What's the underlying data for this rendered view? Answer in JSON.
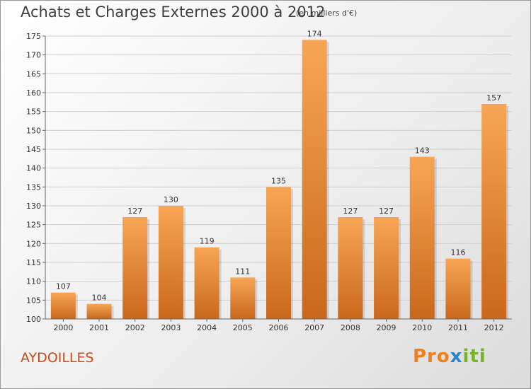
{
  "header": {
    "title": "Achats et Charges Externes 2000 à 2012",
    "unit": "(en milliers d'€)"
  },
  "footer": {
    "town": "AYDOILLES",
    "logo_text": "Proxiti"
  },
  "colors": {
    "bar_light": "#f7a655",
    "bar_dark": "#c9681c",
    "grid": "#cfcfcf",
    "axis_text": "#333333",
    "town": "#cc4a1a"
  },
  "chart_data": {
    "type": "bar",
    "title": "Achats et Charges Externes 2000 à 2012",
    "subtitle": "(en milliers d'€)",
    "categories": [
      "2000",
      "2001",
      "2002",
      "2003",
      "2004",
      "2005",
      "2006",
      "2007",
      "2008",
      "2009",
      "2010",
      "2011",
      "2012"
    ],
    "values": [
      107,
      104,
      127,
      130,
      119,
      111,
      135,
      174,
      127,
      127,
      143,
      116,
      157
    ],
    "ylim": [
      100,
      175
    ],
    "yticks": [
      100,
      105,
      110,
      115,
      120,
      125,
      130,
      135,
      140,
      145,
      150,
      155,
      160,
      165,
      170,
      175
    ],
    "xlabel": "",
    "ylabel": "",
    "grid": true,
    "legend": "none"
  }
}
